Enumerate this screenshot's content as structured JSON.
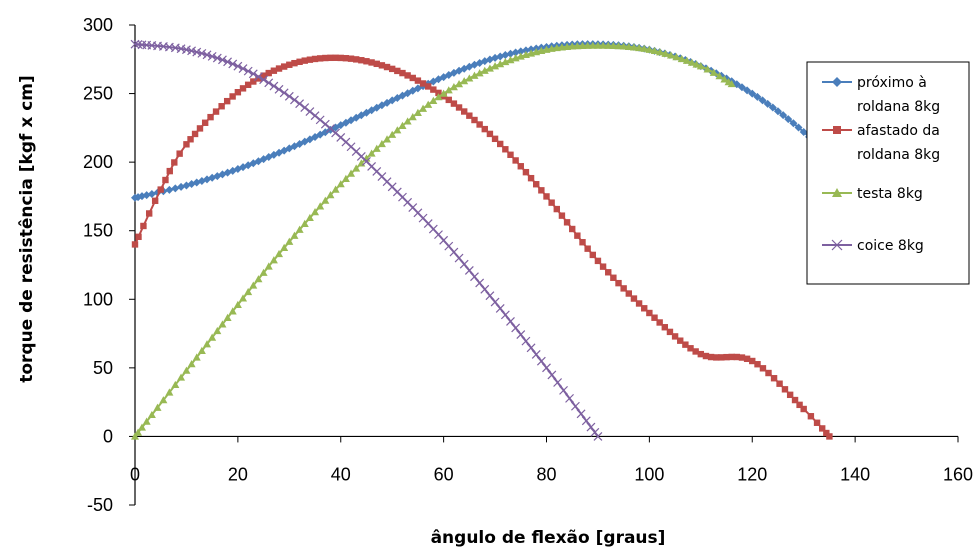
{
  "chart_data": {
    "type": "line",
    "title": "",
    "xlabel": "ângulo de flexão [graus]",
    "ylabel": "torque de resistência [kgf x cm]",
    "xlim": [
      0,
      160
    ],
    "ylim": [
      -50,
      300
    ],
    "x_ticks": [
      "0",
      "20",
      "40",
      "60",
      "80",
      "100",
      "120",
      "140",
      "160"
    ],
    "y_ticks": [
      "-50",
      "0",
      "50",
      "100",
      "150",
      "200",
      "250",
      "300"
    ],
    "grid": false,
    "legend_position": "right",
    "series": [
      {
        "name_lines": [
          "próximo à",
          "roldana 8kg"
        ],
        "color": "#4a7ebb",
        "marker": "diamond",
        "x": [
          0,
          10,
          20,
          30,
          40,
          50,
          60,
          70,
          80,
          90,
          100,
          110,
          120,
          130,
          140
        ],
        "y": [
          174,
          183,
          195,
          210,
          227,
          245,
          262,
          276,
          284,
          286,
          282,
          270,
          250,
          222,
          184
        ]
      },
      {
        "name_lines": [
          "afastado da",
          "roldana 8kg"
        ],
        "color": "#be4b48",
        "marker": "square",
        "x": [
          0,
          5,
          10,
          20,
          30,
          40,
          50,
          60,
          70,
          80,
          90,
          100,
          110,
          120,
          130,
          135
        ],
        "y": [
          140,
          180,
          213,
          251,
          271,
          276,
          268,
          248,
          217,
          175,
          128,
          90,
          60,
          55,
          20,
          0
        ]
      },
      {
        "name_lines": [
          "testa 8kg"
        ],
        "color": "#98b954",
        "marker": "triangle",
        "x": [
          0,
          10,
          20,
          30,
          40,
          50,
          60,
          70,
          80,
          90,
          100,
          110,
          116
        ],
        "y": [
          0,
          48,
          96,
          142,
          184,
          220,
          250,
          270,
          282,
          285,
          282,
          270,
          257
        ]
      },
      {
        "name_lines": [
          "coice 8kg"
        ],
        "color": "#7d60a0",
        "marker": "x",
        "x": [
          0,
          10,
          20,
          30,
          40,
          50,
          60,
          70,
          80,
          90
        ],
        "y": [
          286,
          282,
          270,
          248,
          218,
          182,
          143,
          98,
          50,
          0
        ]
      }
    ]
  }
}
